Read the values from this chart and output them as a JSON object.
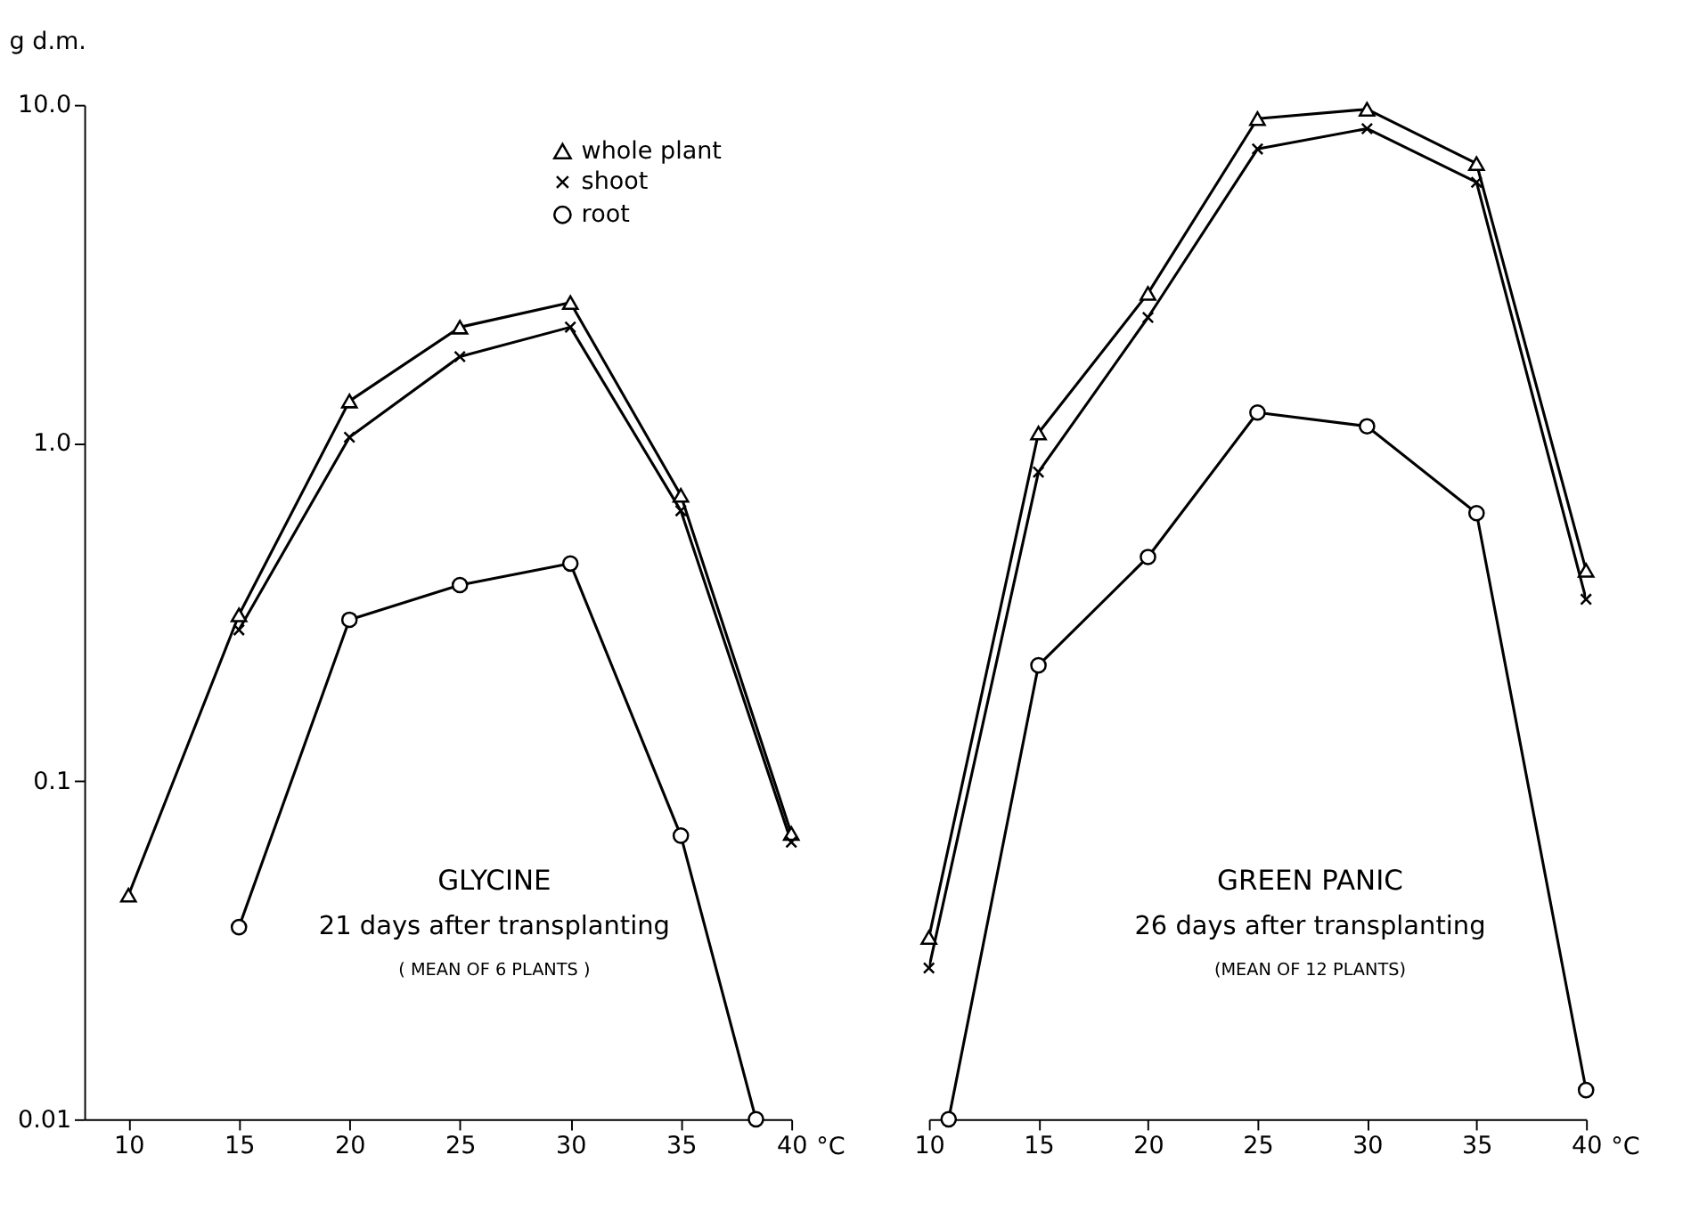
{
  "chart_data": [
    {
      "type": "line",
      "xlabel": "°C",
      "ylabel": "g d.m.",
      "log": "y",
      "grid": false,
      "legend": "top right",
      "xlim": [
        8,
        40
      ],
      "xticks": [
        10,
        15,
        20,
        25,
        30,
        35,
        40
      ],
      "ylim": [
        0.01,
        10
      ],
      "yticks": [
        0.01,
        0.1,
        {
          "value": 1,
          "label": "1.0"
        },
        {
          "value": 10,
          "label": "10.0"
        }
      ],
      "annotations": [
        "GLYCINE",
        "21 days after transplanting",
        "( MEAN OF 6 PLANTS )"
      ],
      "series": [
        {
          "name": "whole plant",
          "color": "#000000",
          "marker": "triangle",
          "x": [
            10,
            15,
            20,
            25,
            30,
            35,
            40
          ],
          "values": [
            0.046,
            0.31,
            1.33,
            2.2,
            2.6,
            0.7,
            0.07
          ]
        },
        {
          "name": "shoot",
          "color": "#000000",
          "marker": "cross",
          "x": [
            15,
            20,
            25,
            30,
            35,
            40
          ],
          "values": [
            0.28,
            1.04,
            1.8,
            2.2,
            0.63,
            0.066
          ]
        },
        {
          "name": "root",
          "color": "#000000",
          "marker": "circle",
          "x": [
            15,
            20,
            25,
            30,
            35,
            38.4
          ],
          "values": [
            0.037,
            0.3,
            0.38,
            0.44,
            0.069,
            0.01
          ]
        }
      ]
    },
    {
      "type": "line",
      "xlabel": "°C",
      "log": "y",
      "grid": false,
      "tick_labels": "x",
      "xlim": [
        10,
        40
      ],
      "xticks": [
        10,
        15,
        20,
        25,
        30,
        35,
        40
      ],
      "ylim": [
        0.01,
        10
      ],
      "annotations": [
        "GREEN PANIC",
        "26 days after transplanting",
        "(MEAN OF 12 PLANTS)"
      ],
      "series": [
        {
          "color": "#000000",
          "marker": "triangle",
          "x": [
            10,
            15,
            20,
            25,
            30,
            35,
            40
          ],
          "values": [
            0.0345,
            1.07,
            2.77,
            9.1,
            9.7,
            6.7,
            0.42
          ]
        },
        {
          "color": "#000000",
          "marker": "cross",
          "x": [
            10,
            15,
            20,
            25,
            30,
            35,
            40
          ],
          "values": [
            0.028,
            0.82,
            2.35,
            7.4,
            8.5,
            5.9,
            0.345
          ]
        },
        {
          "color": "#000000",
          "marker": "circle",
          "x": [
            10.9,
            15,
            20,
            25,
            30,
            35,
            40
          ],
          "values": [
            0.01,
            0.22,
            0.46,
            1.23,
            1.12,
            0.62,
            0.0122
          ]
        }
      ]
    }
  ]
}
